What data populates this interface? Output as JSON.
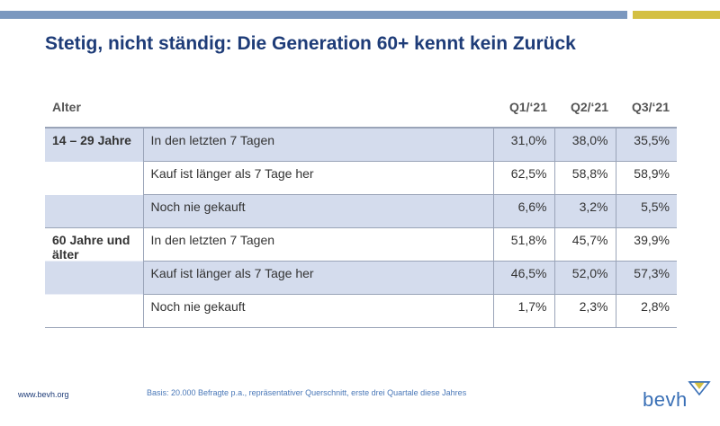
{
  "title": "Stetig, nicht ständig: Die Generation 60+ kennt kein Zurück",
  "table": {
    "headers": [
      "Alter",
      "",
      "Q1/‘21",
      "Q2/‘21",
      "Q3/‘21"
    ],
    "groups": [
      {
        "label": "14 – 29 Jahre",
        "rows": [
          {
            "category": "In den letzten 7 Tagen",
            "values": [
              "31,0%",
              "38,0%",
              "35,5%"
            ]
          },
          {
            "category": "Kauf ist länger als 7 Tage her",
            "values": [
              "62,5%",
              "58,8%",
              "58,9%"
            ]
          },
          {
            "category": "Noch nie gekauft",
            "values": [
              "6,6%",
              "3,2%",
              "5,5%"
            ]
          }
        ]
      },
      {
        "label": "60 Jahre und älter",
        "rows": [
          {
            "category": "In den letzten 7 Tagen",
            "values": [
              "51,8%",
              "45,7%",
              "39,9%"
            ]
          },
          {
            "category": "Kauf ist länger als 7 Tage her",
            "values": [
              "46,5%",
              "52,0%",
              "57,3%"
            ]
          },
          {
            "category": "Noch nie gekauft",
            "values": [
              "1,7%",
              "2,3%",
              "2,8%"
            ]
          }
        ]
      }
    ]
  },
  "footer": {
    "url": "www.bevh.org",
    "note": "Basis: 20.000 Befragte p.a., repräsentativer Querschnitt, erste drei Quartale diese Jahres"
  },
  "logo": {
    "text": "bevh",
    "icon": "bevh-logo-mark"
  },
  "colors": {
    "title": "#1e3c78",
    "top_bar": "#7b98bf",
    "top_bar_accent": "#d4c043",
    "row_shade": "#d4dced",
    "logo": "#3a70b6"
  }
}
